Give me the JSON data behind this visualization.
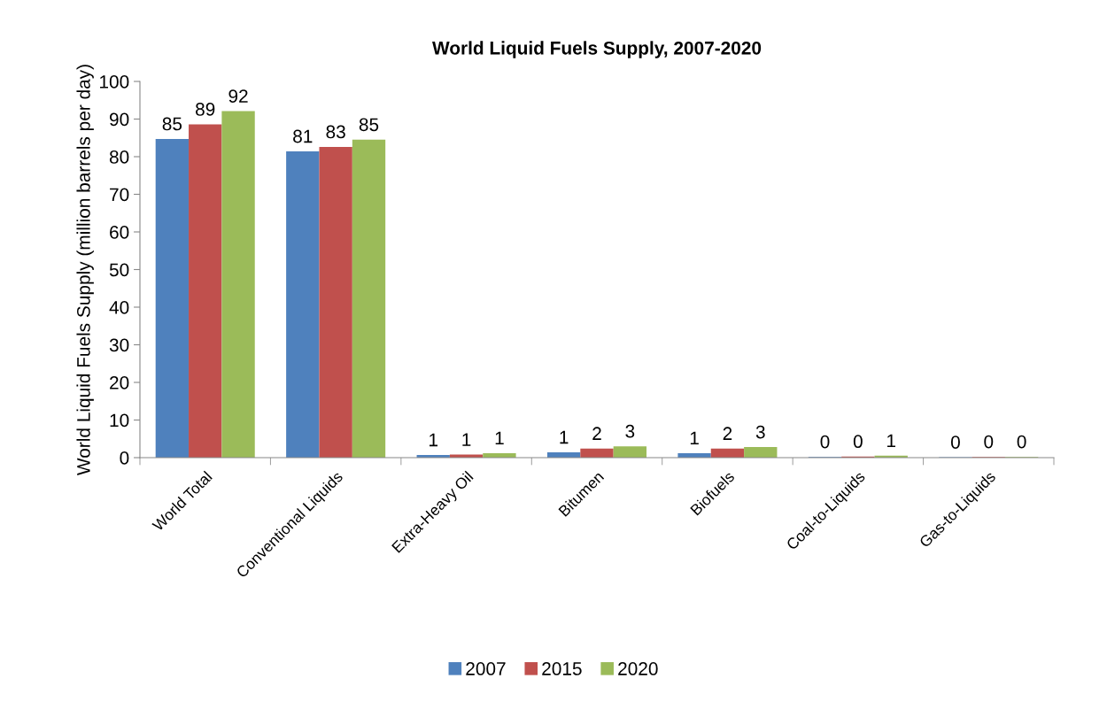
{
  "chart_data": {
    "type": "bar",
    "title": "World Liquid Fuels Supply, 2007-2020",
    "ylabel": "World Liquid Fuels Supply (million barrels per day)",
    "categories": [
      "World Total",
      "Conventional Liquids",
      "Extra-Heavy Oil",
      "Bitumen",
      "Biofuels",
      "Coal-to-Liquids",
      "Gas-to-Liquids"
    ],
    "series": [
      {
        "name": "2007",
        "color": "#4f81bd",
        "values": [
          84.7,
          81.4,
          0.7,
          1.4,
          1.2,
          0.2,
          0.1
        ],
        "value_labels": [
          "85",
          "81",
          "1",
          "1",
          "1",
          "0",
          "0"
        ]
      },
      {
        "name": "2015",
        "color": "#c0504d",
        "values": [
          88.6,
          82.6,
          0.8,
          2.4,
          2.4,
          0.3,
          0.2
        ],
        "value_labels": [
          "89",
          "83",
          "1",
          "2",
          "2",
          "0",
          "0"
        ]
      },
      {
        "name": "2020",
        "color": "#9bbb59",
        "values": [
          92.1,
          84.5,
          1.2,
          3.0,
          2.8,
          0.5,
          0.2
        ],
        "value_labels": [
          "92",
          "85",
          "1",
          "3",
          "3",
          "1",
          "0"
        ]
      }
    ],
    "ylim": [
      0,
      100
    ],
    "yticks": [
      0,
      10,
      20,
      30,
      40,
      50,
      60,
      70,
      80,
      90,
      100
    ],
    "grid": false,
    "legend": "bottom"
  }
}
